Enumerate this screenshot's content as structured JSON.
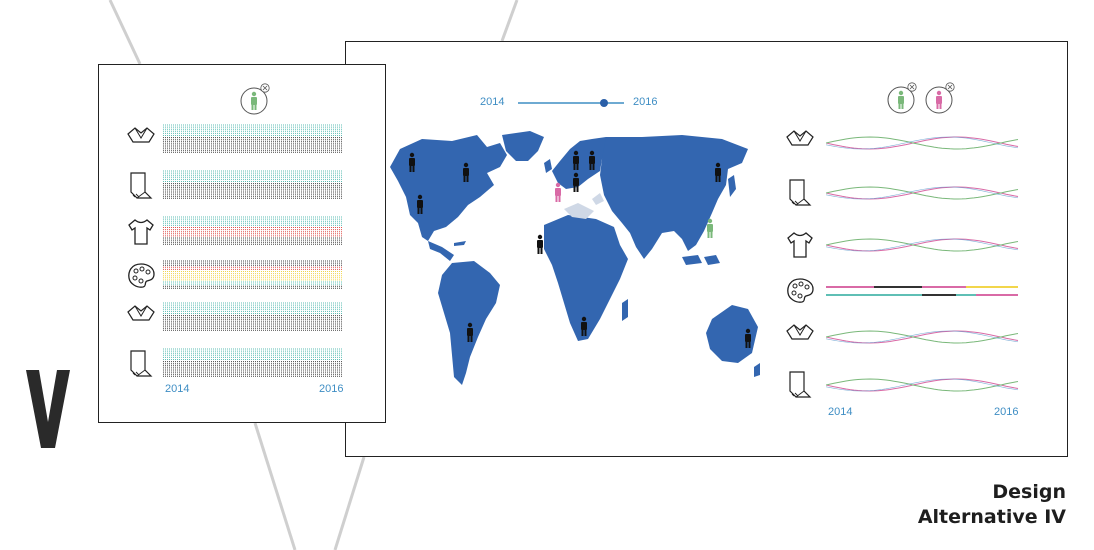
{
  "roman_numeral": "V",
  "caption": {
    "line1": "Design",
    "line2": "Alternative IV"
  },
  "colors": {
    "accent": "#3f8ec4",
    "map": "#3366b0",
    "teal": "#5fbfb5",
    "pink": "#d96aa6",
    "green": "#7ab87a",
    "yellow": "#f2d64b",
    "red": "#e0524f"
  },
  "left_panel": {
    "filter_icon": "person-green-icon",
    "year_start": "2014",
    "year_end": "2016",
    "rows": [
      {
        "icon": "shirt-collar-icon"
      },
      {
        "icon": "fabric-roll-icon"
      },
      {
        "icon": "tshirt-icon"
      },
      {
        "icon": "palette-icon"
      },
      {
        "icon": "shirt-collar-icon"
      },
      {
        "icon": "fabric-roll-icon"
      }
    ]
  },
  "right_panel": {
    "slider_start": "2014",
    "slider_end": "2016",
    "slider_value": 0.88,
    "filter_icons": [
      "person-green-icon",
      "person-pink-icon"
    ],
    "year_start": "2014",
    "year_end": "2016",
    "rows": [
      {
        "icon": "shirt-collar-icon"
      },
      {
        "icon": "fabric-roll-icon"
      },
      {
        "icon": "tshirt-icon"
      },
      {
        "icon": "palette-icon"
      },
      {
        "icon": "shirt-collar-icon"
      },
      {
        "icon": "fabric-roll-icon"
      }
    ]
  }
}
